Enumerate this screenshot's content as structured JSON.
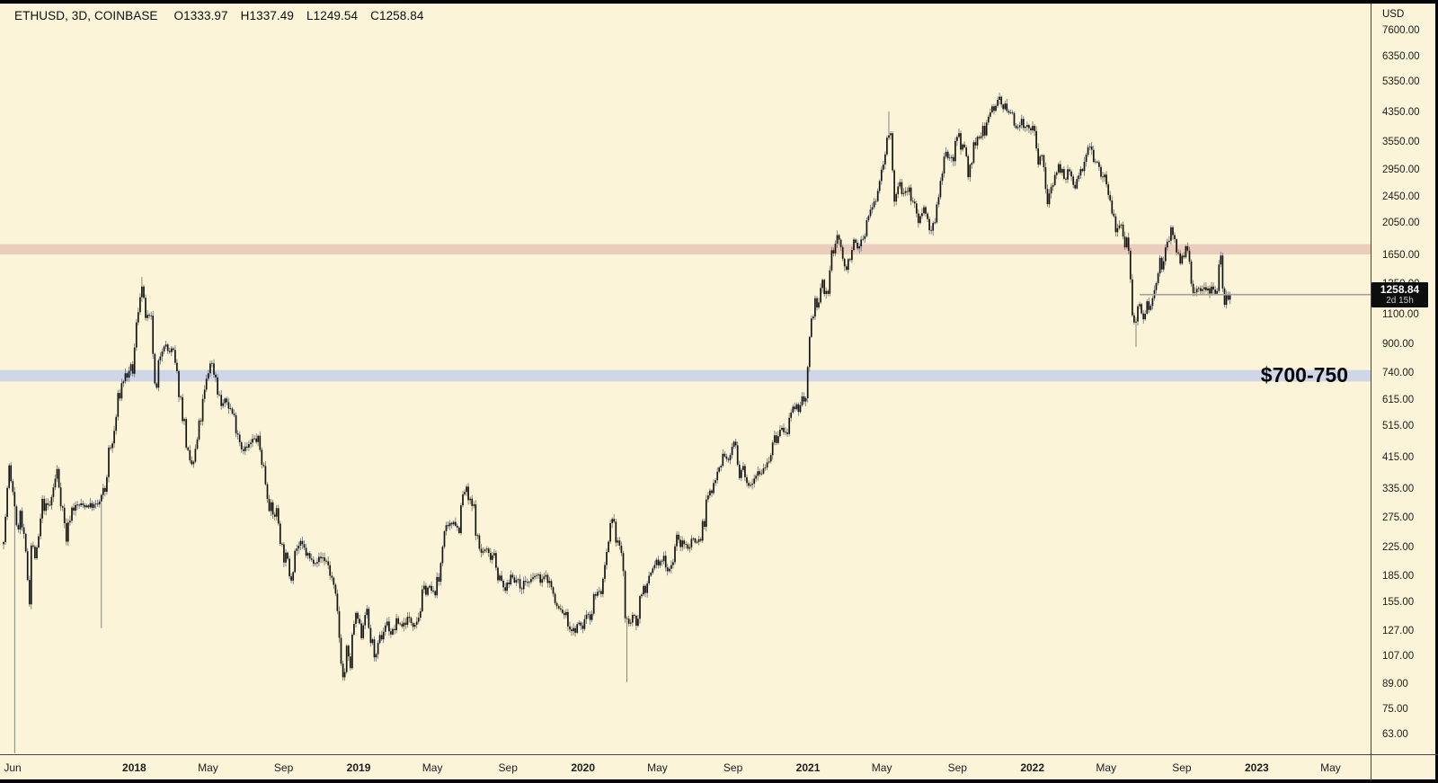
{
  "legend": {
    "symbol_line": "ETHUSD, 3D, COINBASE",
    "open": "O1333.97",
    "high": "H1337.49",
    "low": "L1249.54",
    "close": "C1258.84"
  },
  "price_axis": {
    "currency": "USD",
    "ticks": [
      "7600.00",
      "6350.00",
      "5350.00",
      "4350.00",
      "3550.00",
      "2950.00",
      "2450.00",
      "2050.00",
      "1650.00",
      "1350.00",
      "1100.00",
      "900.00",
      "740.00",
      "615.00",
      "515.00",
      "415.00",
      "335.00",
      "275.00",
      "225.00",
      "185.00",
      "155.00",
      "127.00",
      "107.00",
      "89.00",
      "75.00",
      "63.00"
    ],
    "last_price": "1258.84",
    "countdown": "2d 15h"
  },
  "time_axis": {
    "labels": [
      {
        "text": "Jun",
        "day": 0,
        "bold": false
      },
      {
        "text": "2018",
        "day": 214,
        "bold": true
      },
      {
        "text": "May",
        "day": 334,
        "bold": false
      },
      {
        "text": "Sep",
        "day": 457,
        "bold": false
      },
      {
        "text": "2019",
        "day": 579,
        "bold": true
      },
      {
        "text": "May",
        "day": 699,
        "bold": false
      },
      {
        "text": "Sep",
        "day": 822,
        "bold": false
      },
      {
        "text": "2020",
        "day": 944,
        "bold": true
      },
      {
        "text": "May",
        "day": 1065,
        "bold": false
      },
      {
        "text": "Sep",
        "day": 1188,
        "bold": false
      },
      {
        "text": "2021",
        "day": 1310,
        "bold": true
      },
      {
        "text": "May",
        "day": 1430,
        "bold": false
      },
      {
        "text": "Sep",
        "day": 1553,
        "bold": false
      },
      {
        "text": "2022",
        "day": 1675,
        "bold": true
      },
      {
        "text": "May",
        "day": 1795,
        "bold": false
      },
      {
        "text": "Sep",
        "day": 1918,
        "bold": false
      },
      {
        "text": "2023",
        "day": 2040,
        "bold": true
      },
      {
        "text": "May",
        "day": 2160,
        "bold": false
      }
    ]
  },
  "zones": [
    {
      "label": "",
      "price_from": 1655,
      "price_to": 1775,
      "color": "#EACDBC"
    },
    {
      "label": "$700-750",
      "price_from": 697,
      "price_to": 753,
      "color": "#CED6E7"
    }
  ],
  "colors": {
    "background": "#FBF4D8",
    "candle_body": "#141414",
    "candle_wick": "#6E6E68",
    "price_line": "#A3A199",
    "label_bg": "#0D0D0D",
    "axis_border": "#454545"
  },
  "chart_data": {
    "type": "candlestick",
    "symbol": "ETHUSD",
    "interval": "3D",
    "exchange": "COINBASE",
    "scale": "logarithmic",
    "ohlc_last": {
      "open": 1333.97,
      "high": 1337.49,
      "low": 1249.54,
      "close": 1258.84
    },
    "last_price_line": 1258.84,
    "x_start": "Jun 2017",
    "bar_interval_days": 3,
    "y_axis_range": [
      63,
      7600
    ],
    "support_zone": "$700-750",
    "resistance_zone": "1655-1775",
    "price_path_anchors": [
      [
        0,
        230
      ],
      [
        6,
        270
      ],
      [
        11,
        395
      ],
      [
        15,
        345
      ],
      [
        20,
        327
      ],
      [
        24,
        250
      ],
      [
        30,
        283
      ],
      [
        39,
        210
      ],
      [
        45,
        157
      ],
      [
        48,
        230
      ],
      [
        56,
        205
      ],
      [
        66,
        300
      ],
      [
        78,
        298
      ],
      [
        90,
        380
      ],
      [
        99,
        290
      ],
      [
        105,
        237
      ],
      [
        112,
        292
      ],
      [
        125,
        300
      ],
      [
        140,
        300
      ],
      [
        154,
        298
      ],
      [
        160,
        308
      ],
      [
        168,
        332
      ],
      [
        174,
        425
      ],
      [
        181,
        460
      ],
      [
        190,
        630
      ],
      [
        199,
        722
      ],
      [
        208,
        730
      ],
      [
        214,
        762
      ],
      [
        220,
        1070
      ],
      [
        227,
        1385
      ],
      [
        231,
        1160
      ],
      [
        238,
        1035
      ],
      [
        244,
        1030
      ],
      [
        250,
        600
      ],
      [
        257,
        838
      ],
      [
        262,
        915
      ],
      [
        270,
        858
      ],
      [
        278,
        848
      ],
      [
        287,
        680
      ],
      [
        297,
        520
      ],
      [
        305,
        385
      ],
      [
        313,
        405
      ],
      [
        321,
        505
      ],
      [
        329,
        625
      ],
      [
        339,
        805
      ],
      [
        347,
        740
      ],
      [
        356,
        592
      ],
      [
        365,
        612
      ],
      [
        374,
        568
      ],
      [
        382,
        515
      ],
      [
        390,
        448
      ],
      [
        400,
        442
      ],
      [
        409,
        468
      ],
      [
        416,
        470
      ],
      [
        424,
        405
      ],
      [
        432,
        328
      ],
      [
        440,
        278
      ],
      [
        448,
        287
      ],
      [
        456,
        222
      ],
      [
        465,
        200
      ],
      [
        470,
        180
      ],
      [
        477,
        222
      ],
      [
        486,
        230
      ],
      [
        494,
        218
      ],
      [
        503,
        205
      ],
      [
        513,
        207
      ],
      [
        522,
        210
      ],
      [
        530,
        203
      ],
      [
        537,
        180
      ],
      [
        545,
        148
      ],
      [
        553,
        102
      ],
      [
        556,
        88
      ],
      [
        561,
        112
      ],
      [
        566,
        96
      ],
      [
        572,
        133
      ],
      [
        578,
        141
      ],
      [
        585,
        124
      ],
      [
        592,
        150
      ],
      [
        601,
        117
      ],
      [
        609,
        106
      ],
      [
        617,
        123
      ],
      [
        626,
        136
      ],
      [
        634,
        124
      ],
      [
        643,
        136
      ],
      [
        652,
        132
      ],
      [
        660,
        139
      ],
      [
        669,
        134
      ],
      [
        678,
        142
      ],
      [
        686,
        166
      ],
      [
        694,
        172
      ],
      [
        702,
        164
      ],
      [
        711,
        178
      ],
      [
        718,
        248
      ],
      [
        727,
        254
      ],
      [
        735,
        272
      ],
      [
        743,
        252
      ],
      [
        749,
        312
      ],
      [
        755,
        338
      ],
      [
        760,
        305
      ],
      [
        768,
        290
      ],
      [
        775,
        226
      ],
      [
        781,
        217
      ],
      [
        788,
        223
      ],
      [
        794,
        210
      ],
      [
        801,
        219
      ],
      [
        808,
        185
      ],
      [
        815,
        171
      ],
      [
        822,
        170
      ],
      [
        829,
        189
      ],
      [
        837,
        179
      ],
      [
        844,
        171
      ],
      [
        851,
        179
      ],
      [
        860,
        176
      ],
      [
        868,
        187
      ],
      [
        877,
        180
      ],
      [
        885,
        184
      ],
      [
        893,
        176
      ],
      [
        900,
        152
      ],
      [
        908,
        147
      ],
      [
        916,
        143
      ],
      [
        924,
        131
      ],
      [
        931,
        127
      ],
      [
        938,
        133
      ],
      [
        946,
        131
      ],
      [
        952,
        146
      ],
      [
        959,
        142
      ],
      [
        965,
        168
      ],
      [
        973,
        164
      ],
      [
        980,
        182
      ],
      [
        987,
        226
      ],
      [
        991,
        260
      ],
      [
        995,
        266
      ],
      [
        999,
        244
      ],
      [
        1005,
        227
      ],
      [
        1011,
        194
      ],
      [
        1015,
        124
      ],
      [
        1019,
        136
      ],
      [
        1026,
        139
      ],
      [
        1032,
        135
      ],
      [
        1038,
        159
      ],
      [
        1044,
        172
      ],
      [
        1050,
        171
      ],
      [
        1057,
        189
      ],
      [
        1063,
        206
      ],
      [
        1070,
        199
      ],
      [
        1077,
        211
      ],
      [
        1083,
        194
      ],
      [
        1090,
        201
      ],
      [
        1097,
        240
      ],
      [
        1104,
        231
      ],
      [
        1111,
        229
      ],
      [
        1118,
        227
      ],
      [
        1124,
        241
      ],
      [
        1131,
        233
      ],
      [
        1137,
        243
      ],
      [
        1143,
        276
      ],
      [
        1149,
        320
      ],
      [
        1156,
        322
      ],
      [
        1162,
        392
      ],
      [
        1169,
        398
      ],
      [
        1175,
        432
      ],
      [
        1181,
        394
      ],
      [
        1187,
        438
      ],
      [
        1190,
        474
      ],
      [
        1194,
        438
      ],
      [
        1199,
        352
      ],
      [
        1205,
        390
      ],
      [
        1211,
        344
      ],
      [
        1218,
        353
      ],
      [
        1224,
        369
      ],
      [
        1230,
        382
      ],
      [
        1237,
        377
      ],
      [
        1243,
        406
      ],
      [
        1249,
        416
      ],
      [
        1256,
        462
      ],
      [
        1262,
        474
      ],
      [
        1268,
        512
      ],
      [
        1274,
        482
      ],
      [
        1281,
        524
      ],
      [
        1287,
        562
      ],
      [
        1293,
        575
      ],
      [
        1299,
        602
      ],
      [
        1305,
        638
      ],
      [
        1308,
        612
      ],
      [
        1311,
        735
      ],
      [
        1315,
        980
      ],
      [
        1319,
        1095
      ],
      [
        1323,
        1225
      ],
      [
        1327,
        1115
      ],
      [
        1331,
        1258
      ],
      [
        1335,
        1382
      ],
      [
        1339,
        1238
      ],
      [
        1345,
        1342
      ],
      [
        1351,
        1665
      ],
      [
        1357,
        1795
      ],
      [
        1360,
        1930
      ],
      [
        1364,
        1835
      ],
      [
        1369,
        1462
      ],
      [
        1375,
        1562
      ],
      [
        1381,
        1692
      ],
      [
        1387,
        1802
      ],
      [
        1393,
        1698
      ],
      [
        1399,
        1822
      ],
      [
        1405,
        2022
      ],
      [
        1411,
        2138
      ],
      [
        1417,
        2302
      ],
      [
        1423,
        2432
      ],
      [
        1429,
        2775
      ],
      [
        1435,
        3245
      ],
      [
        1439,
        3525
      ],
      [
        1441,
        4120
      ],
      [
        1444,
        3880
      ],
      [
        1447,
        3480
      ],
      [
        1450,
        2450
      ],
      [
        1453,
        2285
      ],
      [
        1457,
        2625
      ],
      [
        1461,
        2712
      ],
      [
        1465,
        2388
      ],
      [
        1469,
        2605
      ],
      [
        1473,
        2558
      ],
      [
        1477,
        2622
      ],
      [
        1481,
        2338
      ],
      [
        1485,
        2252
      ],
      [
        1489,
        2128
      ],
      [
        1493,
        2032
      ],
      [
        1497,
        2262
      ],
      [
        1501,
        2332
      ],
      [
        1505,
        2122
      ],
      [
        1509,
        1952
      ],
      [
        1513,
        1988
      ],
      [
        1517,
        2162
      ],
      [
        1521,
        2305
      ],
      [
        1525,
        2552
      ],
      [
        1529,
        2705
      ],
      [
        1533,
        3052
      ],
      [
        1537,
        3185
      ],
      [
        1541,
        3242
      ],
      [
        1545,
        3172
      ],
      [
        1549,
        3282
      ],
      [
        1553,
        3752
      ],
      [
        1555,
        3920
      ],
      [
        1558,
        3702
      ],
      [
        1561,
        3452
      ],
      [
        1564,
        3422
      ],
      [
        1567,
        3322
      ],
      [
        1570,
        3002
      ],
      [
        1573,
        2852
      ],
      [
        1577,
        3062
      ],
      [
        1581,
        3385
      ],
      [
        1585,
        3422
      ],
      [
        1589,
        3582
      ],
      [
        1593,
        3852
      ],
      [
        1597,
        3802
      ],
      [
        1601,
        3922
      ],
      [
        1605,
        4152
      ],
      [
        1609,
        4385
      ],
      [
        1613,
        4522
      ],
      [
        1617,
        4652
      ],
      [
        1621,
        4755
      ],
      [
        1623,
        4820
      ],
      [
        1627,
        4682
      ],
      [
        1631,
        4562
      ],
      [
        1635,
        4282
      ],
      [
        1639,
        4302
      ],
      [
        1643,
        4352
      ],
      [
        1645,
        4252
      ],
      [
        1648,
        3885
      ],
      [
        1651,
        4082
      ],
      [
        1655,
        3982
      ],
      [
        1659,
        4122
      ],
      [
        1663,
        3922
      ],
      [
        1667,
        4022
      ],
      [
        1671,
        3992
      ],
      [
        1675,
        3762
      ],
      [
        1679,
        3722
      ],
      [
        1683,
        3252
      ],
      [
        1687,
        3182
      ],
      [
        1691,
        3122
      ],
      [
        1695,
        2982
      ],
      [
        1699,
        2482
      ],
      [
        1702,
        2382
      ],
      [
        1706,
        2582
      ],
      [
        1710,
        2702
      ],
      [
        1714,
        2922
      ],
      [
        1718,
        3102
      ],
      [
        1722,
        2982
      ],
      [
        1726,
        2782
      ],
      [
        1730,
        2642
      ],
      [
        1734,
        2922
      ],
      [
        1738,
        2882
      ],
      [
        1742,
        2602
      ],
      [
        1746,
        2562
      ],
      [
        1750,
        2852
      ],
      [
        1754,
        2952
      ],
      [
        1758,
        3082
      ],
      [
        1762,
        3282
      ],
      [
        1766,
        3422
      ],
      [
        1768,
        3522
      ],
      [
        1772,
        3482
      ],
      [
        1776,
        3252
      ],
      [
        1780,
        3182
      ],
      [
        1784,
        3022
      ],
      [
        1788,
        2942
      ],
      [
        1792,
        2822
      ],
      [
        1796,
        2752
      ],
      [
        1800,
        2642
      ],
      [
        1804,
        2352
      ],
      [
        1808,
        2082
      ],
      [
        1812,
        1962
      ],
      [
        1816,
        2022
      ],
      [
        1820,
        2082
      ],
      [
        1824,
        1942
      ],
      [
        1828,
        1802
      ],
      [
        1832,
        1792
      ],
      [
        1835,
        1622
      ],
      [
        1838,
        1212
      ],
      [
        1841,
        1082
      ],
      [
        1844,
        1012
      ],
      [
        1848,
        1128
      ],
      [
        1852,
        1182
      ],
      [
        1856,
        1072
      ],
      [
        1860,
        1132
      ],
      [
        1864,
        1192
      ],
      [
        1868,
        1112
      ],
      [
        1872,
        1242
      ],
      [
        1876,
        1352
      ],
      [
        1880,
        1482
      ],
      [
        1884,
        1582
      ],
      [
        1888,
        1542
      ],
      [
        1892,
        1632
      ],
      [
        1896,
        1702
      ],
      [
        1899,
        1882
      ],
      [
        1902,
        1962
      ],
      [
        1905,
        1832
      ],
      [
        1909,
        1702
      ],
      [
        1913,
        1622
      ],
      [
        1917,
        1552
      ],
      [
        1921,
        1632
      ],
      [
        1925,
        1712
      ],
      [
        1929,
        1632
      ],
      [
        1933,
        1462
      ],
      [
        1937,
        1332
      ],
      [
        1941,
        1272
      ],
      [
        1945,
        1322
      ],
      [
        1949,
        1332
      ],
      [
        1953,
        1282
      ],
      [
        1957,
        1302
      ],
      [
        1961,
        1322
      ],
      [
        1965,
        1282
      ],
      [
        1969,
        1312
      ],
      [
        1973,
        1342
      ],
      [
        1977,
        1332
      ],
      [
        1980,
        1562
      ],
      [
        1983,
        1622
      ],
      [
        1986,
        1342
      ],
      [
        1989,
        1182
      ],
      [
        1992,
        1222
      ],
      [
        1995,
        1242
      ],
      [
        1998,
        1258.84
      ]
    ],
    "special_wicks": [
      {
        "day": 20,
        "side": "low",
        "to_bottom": true
      },
      {
        "day": 159,
        "side": "low",
        "price": 130
      },
      {
        "day": 225,
        "side": "high",
        "price": 1420
      },
      {
        "day": 1014,
        "side": "low",
        "price": 90
      },
      {
        "day": 1440,
        "side": "high",
        "price": 4383
      },
      {
        "day": 1622,
        "side": "high",
        "price": 4868
      },
      {
        "day": 1842,
        "side": "low",
        "price": 881
      }
    ]
  }
}
